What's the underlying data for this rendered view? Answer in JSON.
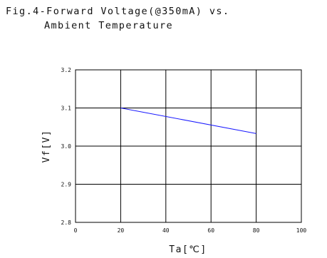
{
  "title_lines": [
    "Fig.4-Forward Voltage(@350mA) vs.",
    "Ambient Temperature"
  ],
  "chart_data": {
    "type": "line",
    "title": "Fig.4-Forward Voltage(@350mA) vs. Ambient Temperature",
    "xlabel": "Ta[℃]",
    "ylabel": "Vf[V]",
    "xlim": [
      0,
      100
    ],
    "ylim": [
      2.8,
      3.2
    ],
    "xticks": [
      0,
      20,
      40,
      60,
      80,
      100
    ],
    "xtick_labels": [
      "0",
      "20",
      "40",
      "60",
      "80",
      "100"
    ],
    "yticks": [
      2.8,
      2.9,
      3.0,
      3.1,
      3.2
    ],
    "ytick_labels": [
      "2.8",
      "2.9",
      "3.0",
      "3.1",
      "3.2"
    ],
    "grid": true,
    "series": [
      {
        "x": [
          20,
          80
        ],
        "y": [
          3.1,
          3.033
        ],
        "color": "#1a1aff"
      }
    ]
  }
}
